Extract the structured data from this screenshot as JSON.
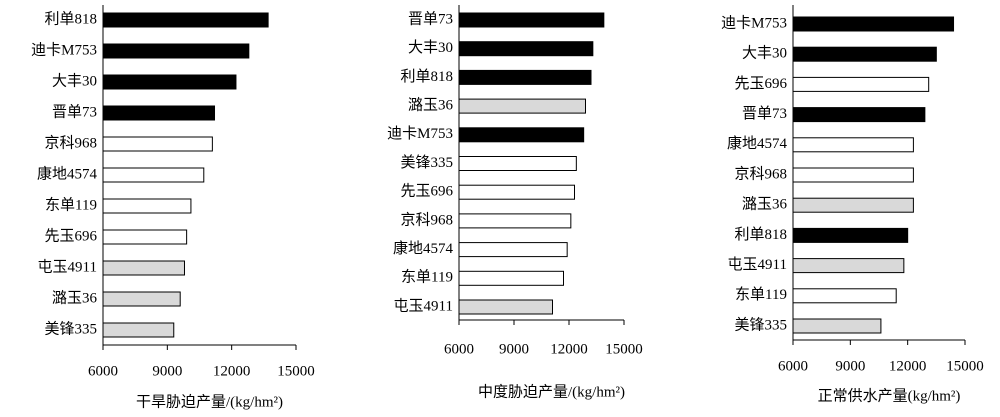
{
  "chart_data": [
    {
      "type": "bar",
      "orientation": "horizontal",
      "xlabel": "干旱胁迫产量/(kg/hm²)",
      "categories": [
        "利单818",
        "迪卡M753",
        "大丰30",
        "晋单73",
        "京科968",
        "康地4574",
        "东单119",
        "先玉696",
        "屯玉4911",
        "潞玉36",
        "美锋335"
      ],
      "values": [
        13700,
        12800,
        12200,
        11200,
        11100,
        10700,
        10100,
        9900,
        9800,
        9600,
        9300
      ],
      "colors": [
        "#000000",
        "#000000",
        "#000000",
        "#000000",
        "#ffffff",
        "#ffffff",
        "#ffffff",
        "#ffffff",
        "#d9d9d9",
        "#d9d9d9",
        "#d9d9d9"
      ],
      "xlim": [
        6000,
        15000
      ],
      "xticks": [
        6000,
        9000,
        12000,
        15000
      ]
    },
    {
      "type": "bar",
      "orientation": "horizontal",
      "xlabel": "中度胁迫产量/(kg/hm²)",
      "categories": [
        "晋单73",
        "大丰30",
        "利单818",
        "潞玉36",
        "迪卡M753",
        "美锋335",
        "先玉696",
        "京科968",
        "康地4574",
        "东单119",
        "屯玉4911"
      ],
      "values": [
        13900,
        13300,
        13200,
        12900,
        12800,
        12400,
        12300,
        12100,
        11900,
        11700,
        11100
      ],
      "colors": [
        "#000000",
        "#000000",
        "#000000",
        "#d9d9d9",
        "#000000",
        "#ffffff",
        "#ffffff",
        "#ffffff",
        "#ffffff",
        "#ffffff",
        "#d9d9d9"
      ],
      "xlim": [
        6000,
        15000
      ],
      "xticks": [
        6000,
        9000,
        12000,
        15000
      ]
    },
    {
      "type": "bar",
      "orientation": "horizontal",
      "xlabel": "正常供水产量(kg/hm²)",
      "categories": [
        "迪卡M753",
        "大丰30",
        "先玉696",
        "晋单73",
        "康地4574",
        "京科968",
        "潞玉36",
        "利单818",
        "屯玉4911",
        "东单119",
        "美锋335"
      ],
      "values": [
        14400,
        13500,
        13100,
        12900,
        12300,
        12300,
        12300,
        12000,
        11800,
        11400,
        10600
      ],
      "colors": [
        "#000000",
        "#000000",
        "#ffffff",
        "#000000",
        "#ffffff",
        "#ffffff",
        "#d9d9d9",
        "#000000",
        "#d9d9d9",
        "#ffffff",
        "#d9d9d9"
      ],
      "xlim": [
        6000,
        15000
      ],
      "xticks": [
        6000,
        9000,
        12000,
        15000
      ]
    }
  ]
}
